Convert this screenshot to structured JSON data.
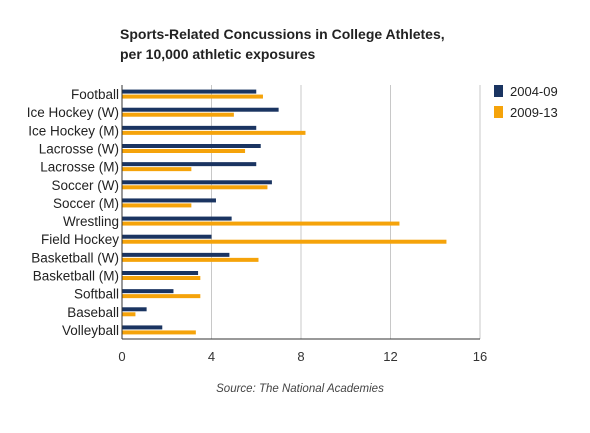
{
  "chart_data": {
    "type": "bar",
    "orientation": "horizontal",
    "title_lines": [
      "Sports-Related Concussions in College Athletes,",
      "per 10,000 athletic exposures"
    ],
    "categories": [
      "Football",
      "Ice Hockey (W)",
      "Ice Hockey (M)",
      "Lacrosse (W)",
      "Lacrosse (M)",
      "Soccer (W)",
      "Soccer (M)",
      "Wrestling",
      "Field Hockey",
      "Basketball (W)",
      "Basketball (M)",
      "Softball",
      "Baseball",
      "Volleyball"
    ],
    "series": [
      {
        "name": "2004-09",
        "color": "#1a3461",
        "values": [
          6.0,
          7.0,
          6.0,
          6.2,
          6.0,
          6.7,
          4.2,
          4.9,
          4.0,
          4.8,
          3.4,
          2.3,
          1.1,
          1.8
        ]
      },
      {
        "name": "2009-13",
        "color": "#f5a30a",
        "values": [
          6.3,
          5.0,
          8.2,
          5.5,
          3.1,
          6.5,
          3.1,
          12.4,
          14.5,
          6.1,
          3.5,
          3.5,
          0.6,
          3.3
        ]
      }
    ],
    "xlim": [
      0,
      16
    ],
    "xticks": [
      0,
      4,
      8,
      12,
      16
    ],
    "grid": true,
    "legend_position": "top-right",
    "source": "Source: The National Academies"
  }
}
